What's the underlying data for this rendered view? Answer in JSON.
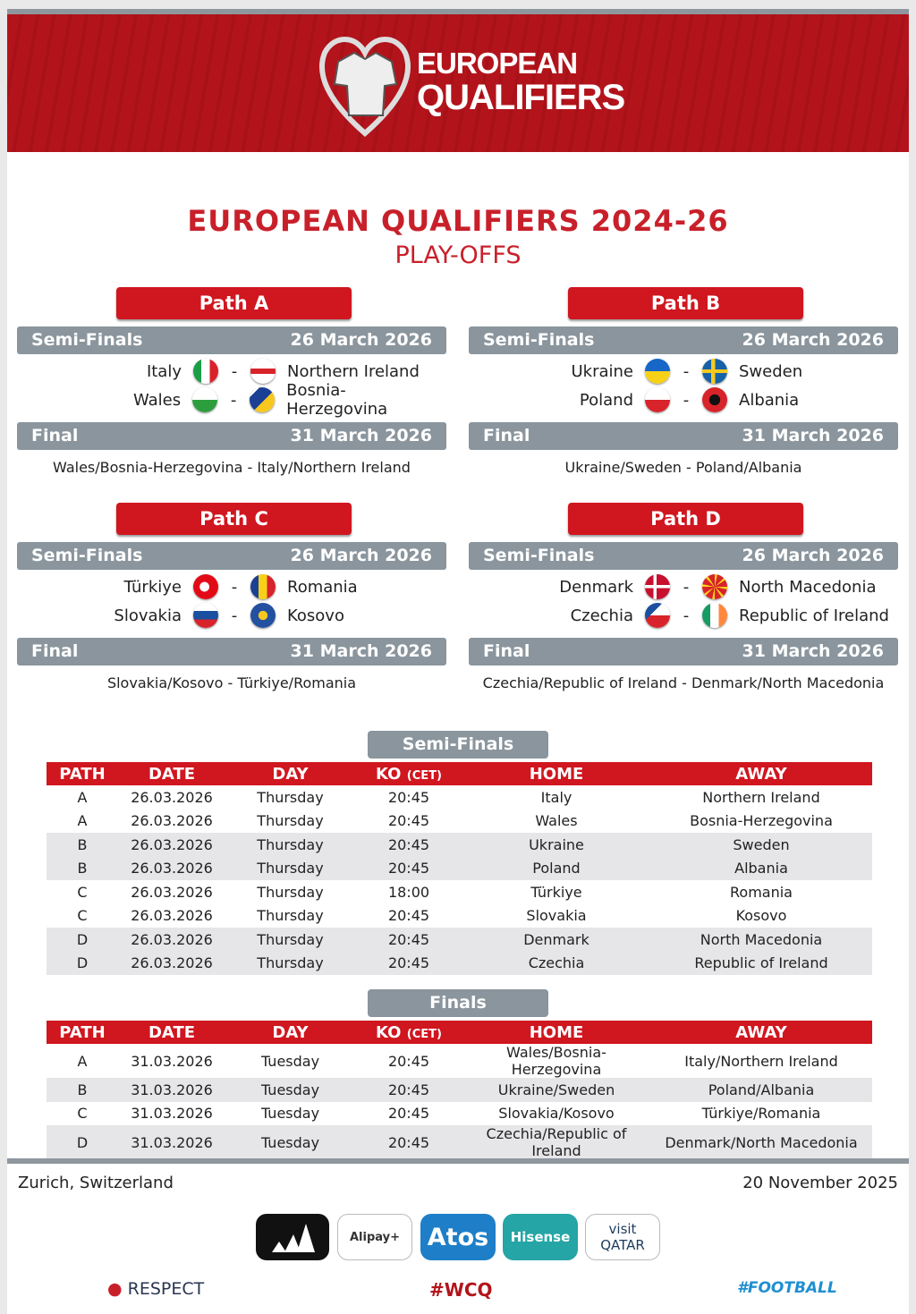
{
  "banner": {
    "logo_line1": "EUROPEAN",
    "logo_line2": "QUALIFIERS"
  },
  "title": "EUROPEAN QUALIFIERS 2024-26",
  "subtitle": "PLAY-OFFS",
  "colors": {
    "red": "#d0161f",
    "grey": "#8a959d",
    "title_red": "#c8202a"
  },
  "paths": [
    {
      "name": "Path A",
      "semi_label": "Semi-Finals",
      "semi_date": "26 March 2026",
      "matches": [
        {
          "home": "Italy",
          "home_flag": "flag-italy",
          "away": "Northern Ireland",
          "away_flag": "flag-northern-ireland"
        },
        {
          "home": "Wales",
          "home_flag": "flag-wales",
          "away": "Bosnia-Herzegovina",
          "away_flag": "flag-bosnia-herzegovina"
        }
      ],
      "final_label": "Final",
      "final_date": "31 March 2026",
      "final_home": "Wales/Bosnia-Herzegovina",
      "final_away": "Italy/Northern Ireland"
    },
    {
      "name": "Path B",
      "semi_label": "Semi-Finals",
      "semi_date": "26 March 2026",
      "matches": [
        {
          "home": "Ukraine",
          "home_flag": "flag-ukraine",
          "away": "Sweden",
          "away_flag": "flag-sweden"
        },
        {
          "home": "Poland",
          "home_flag": "flag-poland",
          "away": "Albania",
          "away_flag": "flag-albania"
        }
      ],
      "final_label": "Final",
      "final_date": "31 March 2026",
      "final_home": "Ukraine/Sweden",
      "final_away": "Poland/Albania"
    },
    {
      "name": "Path C",
      "semi_label": "Semi-Finals",
      "semi_date": "26 March 2026",
      "matches": [
        {
          "home": "Türkiye",
          "home_flag": "flag-turkiye",
          "away": "Romania",
          "away_flag": "flag-romania"
        },
        {
          "home": "Slovakia",
          "home_flag": "flag-slovakia",
          "away": "Kosovo",
          "away_flag": "flag-kosovo"
        }
      ],
      "final_label": "Final",
      "final_date": "31 March 2026",
      "final_home": "Slovakia/Kosovo",
      "final_away": "Türkiye/Romania"
    },
    {
      "name": "Path D",
      "semi_label": "Semi-Finals",
      "semi_date": "26 March 2026",
      "matches": [
        {
          "home": "Denmark",
          "home_flag": "flag-denmark",
          "away": "North Macedonia",
          "away_flag": "flag-north-macedonia"
        },
        {
          "home": "Czechia",
          "home_flag": "flag-czechia",
          "away": "Republic of Ireland",
          "away_flag": "flag-republic-of-ireland"
        }
      ],
      "final_label": "Final",
      "final_date": "31 March 2026",
      "final_home": "Czechia/Republic of Ireland",
      "final_away": "Denmark/North Macedonia"
    }
  ],
  "match_separator": "-",
  "columns": {
    "path": "PATH",
    "date": "DATE",
    "day": "DAY",
    "ko": "KO",
    "ko_unit": "(CET)",
    "home": "HOME",
    "away": "AWAY"
  },
  "semi_table": {
    "label": "Semi-Finals",
    "rows": [
      [
        "A",
        "26.03.2026",
        "Thursday",
        "20:45",
        "Italy",
        "Northern Ireland"
      ],
      [
        "A",
        "26.03.2026",
        "Thursday",
        "20:45",
        "Wales",
        "Bosnia-Herzegovina"
      ],
      [
        "B",
        "26.03.2026",
        "Thursday",
        "20:45",
        "Ukraine",
        "Sweden"
      ],
      [
        "B",
        "26.03.2026",
        "Thursday",
        "20:45",
        "Poland",
        "Albania"
      ],
      [
        "C",
        "26.03.2026",
        "Thursday",
        "18:00",
        "Türkiye",
        "Romania"
      ],
      [
        "C",
        "26.03.2026",
        "Thursday",
        "20:45",
        "Slovakia",
        "Kosovo"
      ],
      [
        "D",
        "26.03.2026",
        "Thursday",
        "20:45",
        "Denmark",
        "North Macedonia"
      ],
      [
        "D",
        "26.03.2026",
        "Thursday",
        "20:45",
        "Czechia",
        "Republic of Ireland"
      ]
    ]
  },
  "final_table": {
    "label": "Finals",
    "rows": [
      [
        "A",
        "31.03.2026",
        "Tuesday",
        "20:45",
        "Wales/Bosnia-Herzegovina",
        "Italy/Northern Ireland"
      ],
      [
        "B",
        "31.03.2026",
        "Tuesday",
        "20:45",
        "Ukraine/Sweden",
        "Poland/Albania"
      ],
      [
        "C",
        "31.03.2026",
        "Tuesday",
        "20:45",
        "Slovakia/Kosovo",
        "Türkiye/Romania"
      ],
      [
        "D",
        "31.03.2026",
        "Tuesday",
        "20:45",
        "Czechia/Republic of Ireland",
        "Denmark/North Macedonia"
      ]
    ]
  },
  "footer": {
    "location": "Zurich, Switzerland",
    "date": "20 November 2025"
  },
  "sponsors": [
    {
      "name": "adidas"
    },
    {
      "name": "Alipay+",
      "text": "Alipay+"
    },
    {
      "name": "Atos",
      "text": "Atos"
    },
    {
      "name": "Hisense",
      "text": "Hisense"
    },
    {
      "name": "Visit Qatar",
      "text": "visit QATAR"
    }
  ],
  "bottom": {
    "respect": "RESPECT",
    "hashtag": "#WCQ",
    "football": "#FOOTBALL"
  }
}
